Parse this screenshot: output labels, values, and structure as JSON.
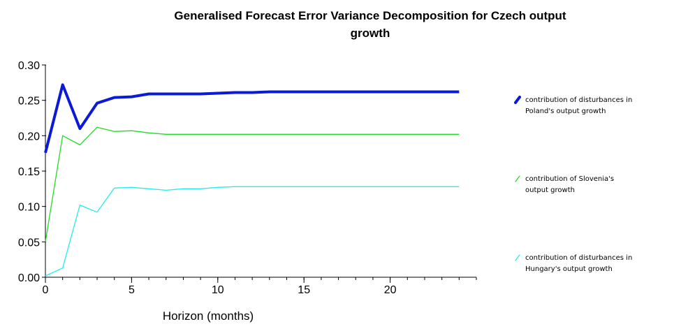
{
  "chart_data": {
    "type": "line",
    "title_line1": "Generalised Forecast Error Variance Decomposition for Czech output",
    "title_line2": "growth",
    "xlabel": "Horizon (months)",
    "ylabel": "",
    "xlim": [
      0,
      25
    ],
    "ylim": [
      0,
      0.3
    ],
    "x_ticks": [
      0,
      5,
      10,
      15,
      20
    ],
    "y_ticks": [
      "0.00",
      "0.05",
      "0.10",
      "0.15",
      "0.20",
      "0.25",
      "0.30"
    ],
    "grid": false,
    "legend_position": "right",
    "x": [
      0,
      1,
      2,
      3,
      4,
      5,
      6,
      7,
      8,
      9,
      10,
      11,
      12,
      13,
      14,
      15,
      16,
      17,
      18,
      19,
      20,
      21,
      22,
      23,
      24
    ],
    "series": [
      {
        "legend_line1": "contribution of disturbances in",
        "legend_line2": "Poland's output growth",
        "color": "#0a1ad6",
        "width": "thick",
        "values": [
          0.176,
          0.272,
          0.21,
          0.246,
          0.254,
          0.255,
          0.259,
          0.259,
          0.259,
          0.259,
          0.26,
          0.261,
          0.261,
          0.262,
          0.262,
          0.262,
          0.262,
          0.262,
          0.262,
          0.262,
          0.262,
          0.262,
          0.262,
          0.262,
          0.262
        ]
      },
      {
        "legend_line1": "contribution of Slovenia's",
        "legend_line2": "output growth",
        "color": "#22dd22",
        "width": "thin",
        "values": [
          0.05,
          0.2,
          0.187,
          0.212,
          0.206,
          0.207,
          0.204,
          0.202,
          0.202,
          0.202,
          0.202,
          0.202,
          0.202,
          0.202,
          0.202,
          0.202,
          0.202,
          0.202,
          0.202,
          0.202,
          0.202,
          0.202,
          0.202,
          0.202,
          0.202
        ]
      },
      {
        "legend_line1": "contribution of disturbances in",
        "legend_line2": "Hungary's output growth",
        "color": "#22eeee",
        "width": "thin",
        "values": [
          0.002,
          0.013,
          0.102,
          0.092,
          0.126,
          0.127,
          0.125,
          0.123,
          0.125,
          0.125,
          0.127,
          0.128,
          0.128,
          0.128,
          0.128,
          0.128,
          0.128,
          0.128,
          0.128,
          0.128,
          0.128,
          0.128,
          0.128,
          0.128,
          0.128
        ]
      }
    ]
  }
}
